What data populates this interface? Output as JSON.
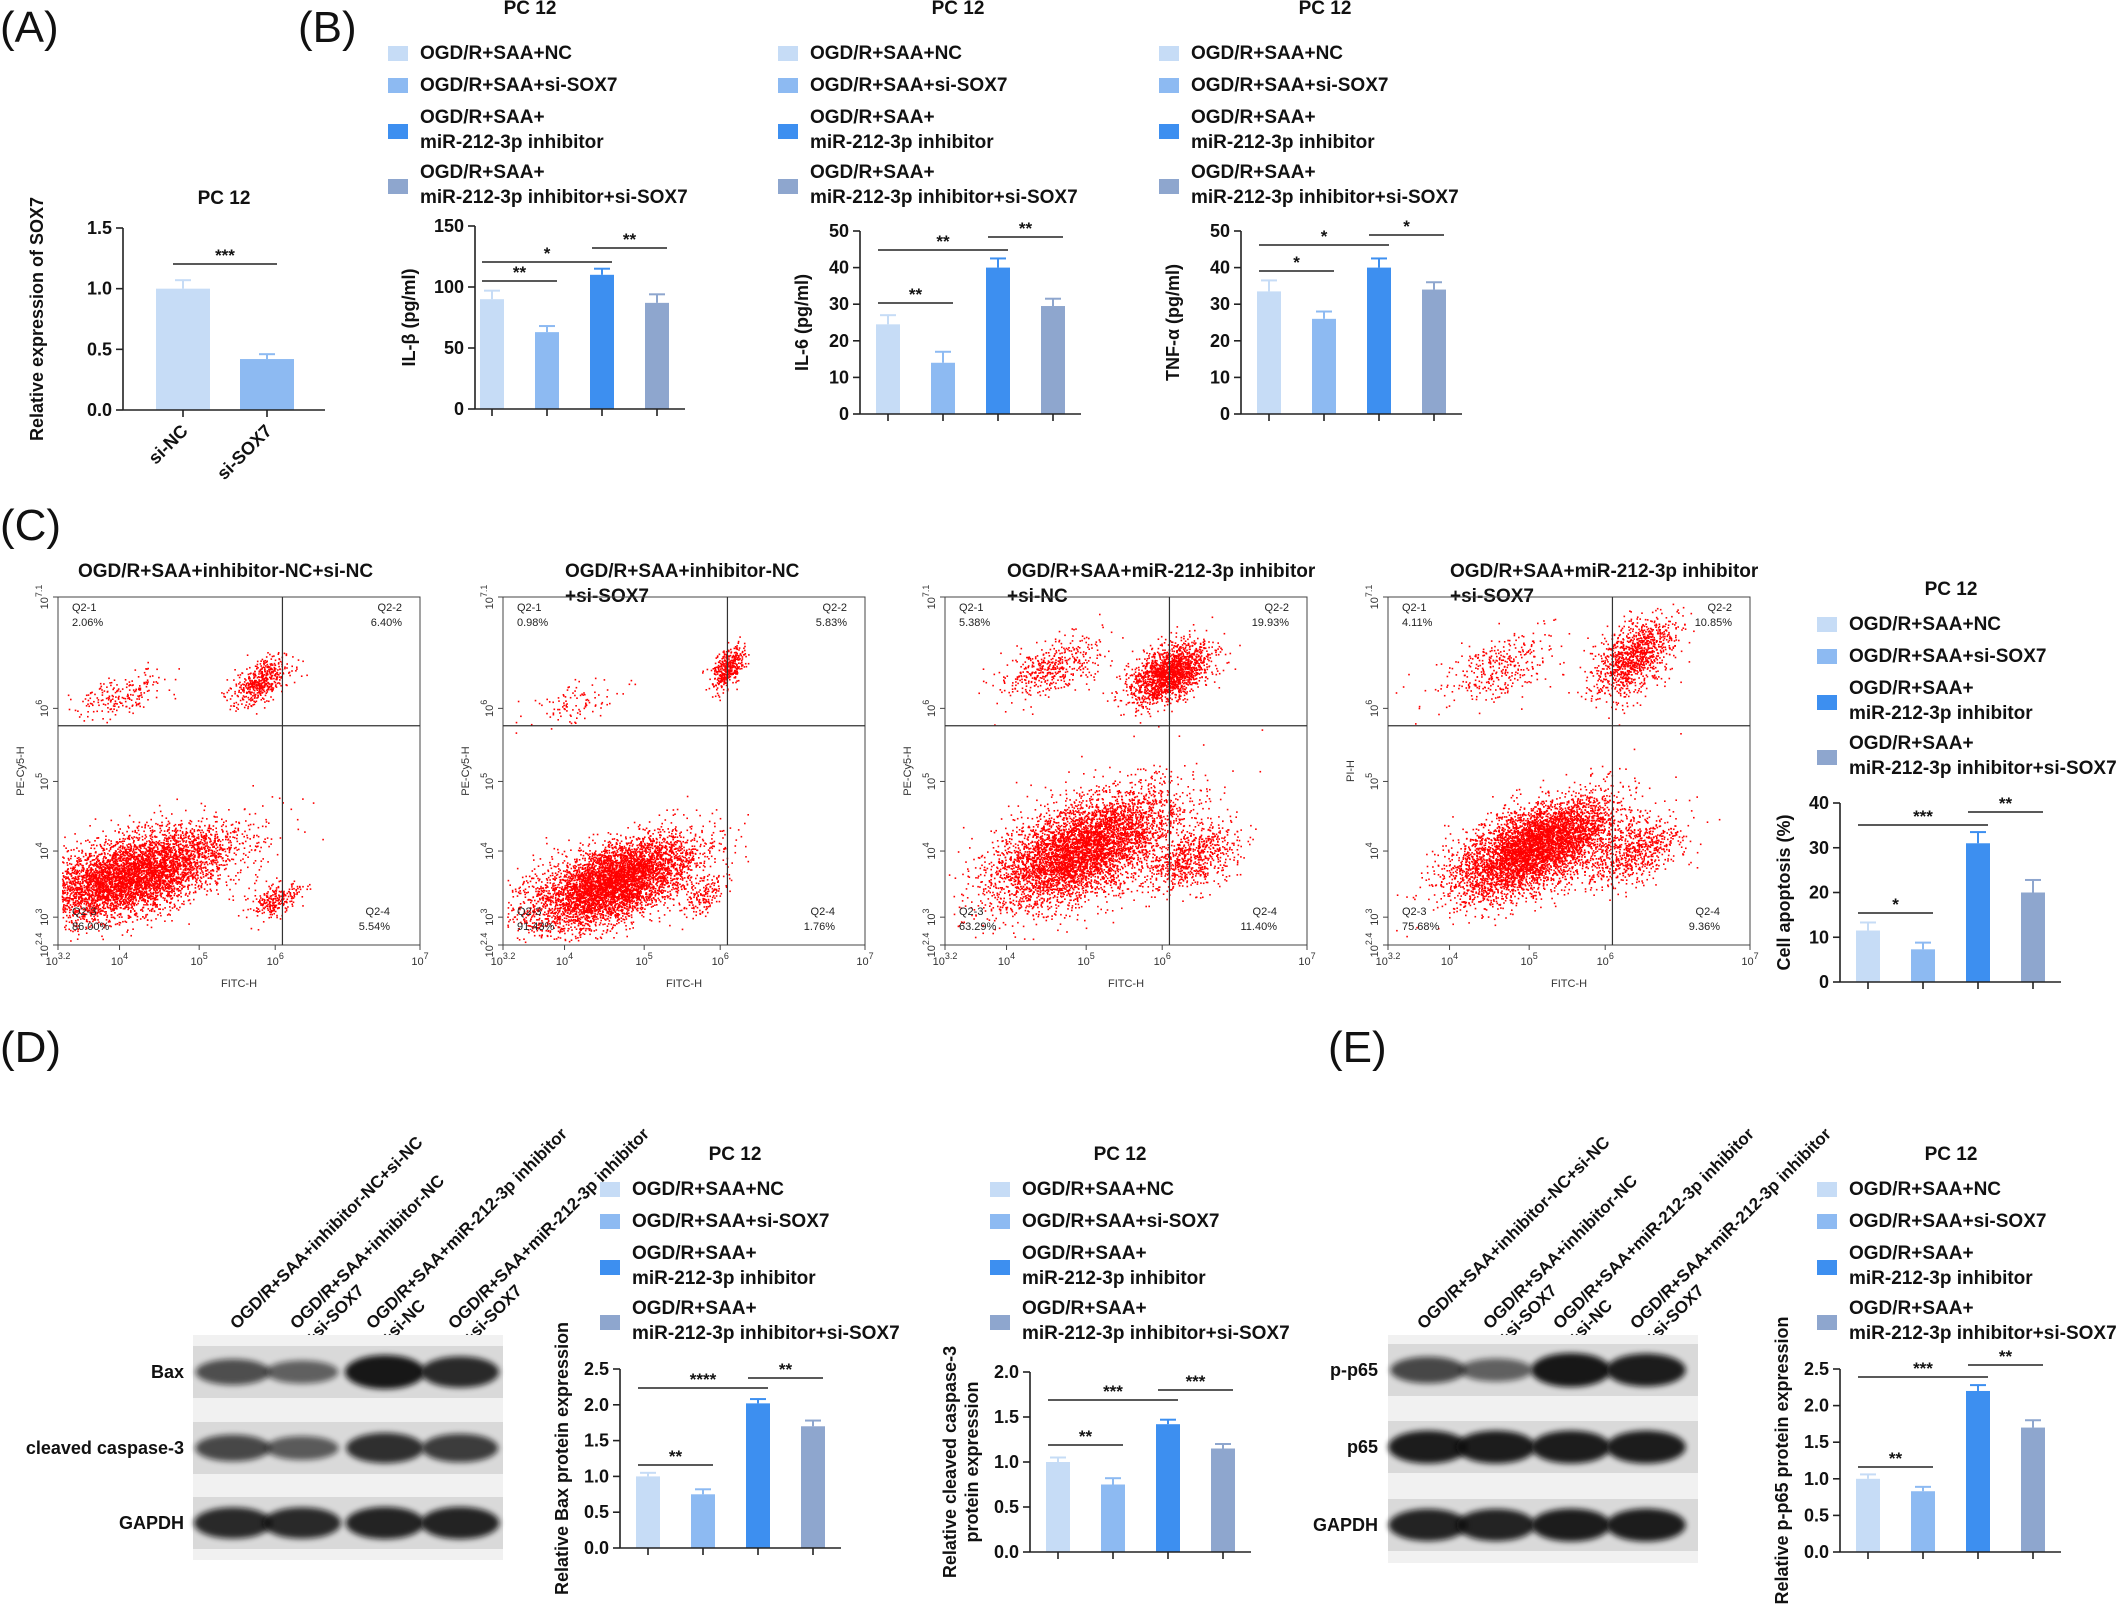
{
  "panel_letters": {
    "A": "(A)",
    "B": "(B)",
    "C": "(C)",
    "D": "(D)",
    "E": "(E)"
  },
  "colors": {
    "c1": "#c6dcf6",
    "c2": "#8dbaf2",
    "c3": "#3d8ff0",
    "c4": "#8ea6ce",
    "dot": "#ff0000"
  },
  "legend": [
    "OGD/R+SAA+NC",
    "OGD/R+SAA+si-SOX7",
    "OGD/R+SAA+|miR-212-3p inhibitor",
    "OGD/R+SAA+|miR-212-3p inhibitor+si-SOX7"
  ],
  "chart_data": [
    {
      "id": "A",
      "type": "bar",
      "title": "PC 12",
      "ylabel": "Relative expression of SOX7",
      "categories": [
        "si-NC",
        "si-SOX7"
      ],
      "values": [
        1.0,
        0.42
      ],
      "errors": [
        0.07,
        0.04
      ],
      "ylim": [
        0,
        1.5
      ],
      "yticks": [
        "0.0",
        "0.5",
        "1.0",
        "1.5"
      ],
      "significance": [
        {
          "from": 0,
          "to": 1,
          "label": "***"
        }
      ]
    },
    {
      "id": "B1",
      "type": "bar",
      "title": "PC 12",
      "ylabel": "IL-β (pg/ml)",
      "values": [
        90,
        63,
        110,
        87
      ],
      "errors": [
        7,
        5,
        5,
        7
      ],
      "ylim": [
        0,
        150
      ],
      "yticks": [
        "0",
        "50",
        "100",
        "150"
      ],
      "significance": [
        {
          "from": 0,
          "to": 1,
          "label": "**"
        },
        {
          "from": 0,
          "to": 2,
          "label": "*"
        },
        {
          "from": 2,
          "to": 3,
          "label": "**"
        }
      ]
    },
    {
      "id": "B2",
      "type": "bar",
      "title": "PC 12",
      "ylabel": "IL-6 (pg/ml)",
      "values": [
        24.5,
        14,
        40,
        29.5
      ],
      "errors": [
        2.5,
        3,
        2.5,
        2
      ],
      "ylim": [
        0,
        50
      ],
      "yticks": [
        "0",
        "10",
        "20",
        "30",
        "40",
        "50"
      ],
      "significance": [
        {
          "from": 0,
          "to": 1,
          "label": "**"
        },
        {
          "from": 0,
          "to": 2,
          "label": "**"
        },
        {
          "from": 2,
          "to": 3,
          "label": "**"
        }
      ]
    },
    {
      "id": "B3",
      "type": "bar",
      "title": "PC 12",
      "ylabel": "TNF-α (pg/ml)",
      "values": [
        33.5,
        26,
        40,
        34
      ],
      "errors": [
        3,
        2,
        2.5,
        2
      ],
      "ylim": [
        0,
        50
      ],
      "yticks": [
        "0",
        "10",
        "20",
        "30",
        "40",
        "50"
      ],
      "significance": [
        {
          "from": 0,
          "to": 1,
          "label": "*"
        },
        {
          "from": 0,
          "to": 2,
          "label": "*"
        },
        {
          "from": 2,
          "to": 3,
          "label": "*"
        }
      ]
    },
    {
      "id": "C5",
      "type": "bar",
      "title": "PC 12",
      "ylabel": "Cell apoptosis (%)",
      "values": [
        11.5,
        7.3,
        31,
        20
      ],
      "errors": [
        1.8,
        1.5,
        2.5,
        2.8
      ],
      "ylim": [
        0,
        40
      ],
      "yticks": [
        "0",
        "10",
        "20",
        "30",
        "40"
      ],
      "significance": [
        {
          "from": 0,
          "to": 1,
          "label": "*"
        },
        {
          "from": 0,
          "to": 2,
          "label": "***"
        },
        {
          "from": 2,
          "to": 3,
          "label": "**"
        }
      ]
    },
    {
      "id": "D1",
      "type": "bar",
      "title": "PC 12",
      "ylabel": "Relative Bax protein expression",
      "values": [
        1.0,
        0.75,
        2.02,
        1.7
      ],
      "errors": [
        0.05,
        0.07,
        0.06,
        0.08
      ],
      "ylim": [
        0,
        2.5
      ],
      "yticks": [
        "0.0",
        "0.5",
        "1.0",
        "1.5",
        "2.0",
        "2.5"
      ],
      "significance": [
        {
          "from": 0,
          "to": 1,
          "label": "**"
        },
        {
          "from": 0,
          "to": 2,
          "label": "****"
        },
        {
          "from": 2,
          "to": 3,
          "label": "**"
        }
      ]
    },
    {
      "id": "D2",
      "type": "bar",
      "title": "PC 12",
      "ylabel": "Relative cleaved caspase-3|protein expression",
      "values": [
        1.0,
        0.75,
        1.42,
        1.15
      ],
      "errors": [
        0.05,
        0.07,
        0.05,
        0.05
      ],
      "ylim": [
        0,
        2.0
      ],
      "yticks": [
        "0.0",
        "0.5",
        "1.0",
        "1.5",
        "2.0"
      ],
      "significance": [
        {
          "from": 0,
          "to": 1,
          "label": "**"
        },
        {
          "from": 0,
          "to": 2,
          "label": "***"
        },
        {
          "from": 2,
          "to": 3,
          "label": "***"
        }
      ]
    },
    {
      "id": "E1",
      "type": "bar",
      "title": "PC 12",
      "ylabel": "Relative p-p65 protein expression",
      "values": [
        1.0,
        0.83,
        2.2,
        1.7
      ],
      "errors": [
        0.06,
        0.06,
        0.08,
        0.1
      ],
      "ylim": [
        0,
        2.5
      ],
      "yticks": [
        "0.0",
        "0.5",
        "1.0",
        "1.5",
        "2.0",
        "2.5"
      ],
      "significance": [
        {
          "from": 0,
          "to": 1,
          "label": "**"
        },
        {
          "from": 0,
          "to": 2,
          "label": "***"
        },
        {
          "from": 2,
          "to": 3,
          "label": "**"
        }
      ]
    },
    {
      "id": "FLOW",
      "type": "scatter",
      "xlabel": "FITC-H",
      "xticks": [
        "10|3.2",
        "10|4",
        "10|5",
        "10|6",
        "10|7"
      ],
      "yticks": [
        "10|2.4",
        "10|3",
        "10|4",
        "10|5",
        "10|6",
        "10|7.1"
      ],
      "plots": [
        {
          "title": "OGD/R+SAA+inhibitor-NC+si-NC",
          "ylabel": "PE-Cy5-H",
          "quadrants": [
            {
              "name": "Q2-1",
              "value": "2.06%"
            },
            {
              "name": "Q2-2",
              "value": "6.40%"
            },
            {
              "name": "Q2-3",
              "value": "86.00%"
            },
            {
              "name": "Q2-4",
              "value": "5.54%"
            }
          ]
        },
        {
          "title": "OGD/R+SAA+inhibitor-NC|+si-SOX7",
          "ylabel": "PE-Cy5-H",
          "quadrants": [
            {
              "name": "Q2-1",
              "value": "0.98%"
            },
            {
              "name": "Q2-2",
              "value": "5.83%"
            },
            {
              "name": "Q2-3",
              "value": "91.43%"
            },
            {
              "name": "Q2-4",
              "value": "1.76%"
            }
          ]
        },
        {
          "title": "OGD/R+SAA+miR-212-3p inhibitor|+si-NC",
          "ylabel": "PE-Cy5-H",
          "quadrants": [
            {
              "name": "Q2-1",
              "value": "5.38%"
            },
            {
              "name": "Q2-2",
              "value": "19.93%"
            },
            {
              "name": "Q2-3",
              "value": "63.29%"
            },
            {
              "name": "Q2-4",
              "value": "11.40%"
            }
          ]
        },
        {
          "title": "OGD/R+SAA+miR-212-3p inhibitor|+si-SOX7",
          "ylabel": "PI-H",
          "quadrants": [
            {
              "name": "Q2-1",
              "value": "4.11%"
            },
            {
              "name": "Q2-2",
              "value": "10.85%"
            },
            {
              "name": "Q2-3",
              "value": "75.68%"
            },
            {
              "name": "Q2-4",
              "value": "9.36%"
            }
          ]
        }
      ]
    }
  ],
  "blots": {
    "D": {
      "lanes": [
        "OGD/R+SAA+inhibitor-NC+si-NC",
        "OGD/R+SAA+inhibitor-NC|+si-SOX7",
        "OGD/R+SAA+miR-212-3p inhibitor|+si-NC",
        "OGD/R+SAA+miR-212-3p inhibitor|+si-SOX7"
      ],
      "bands": [
        "Bax",
        "cleaved caspase-3",
        "GAPDH"
      ]
    },
    "E": {
      "lanes": [
        "OGD/R+SAA+inhibitor-NC+si-NC",
        "OGD/R+SAA+inhibitor-NC|+si-SOX7",
        "OGD/R+SAA+miR-212-3p inhibitor|+si-NC",
        "OGD/R+SAA+miR-212-3p inhibitor|+si-SOX7"
      ],
      "bands": [
        "p-p65",
        "p65",
        "GAPDH"
      ]
    }
  }
}
